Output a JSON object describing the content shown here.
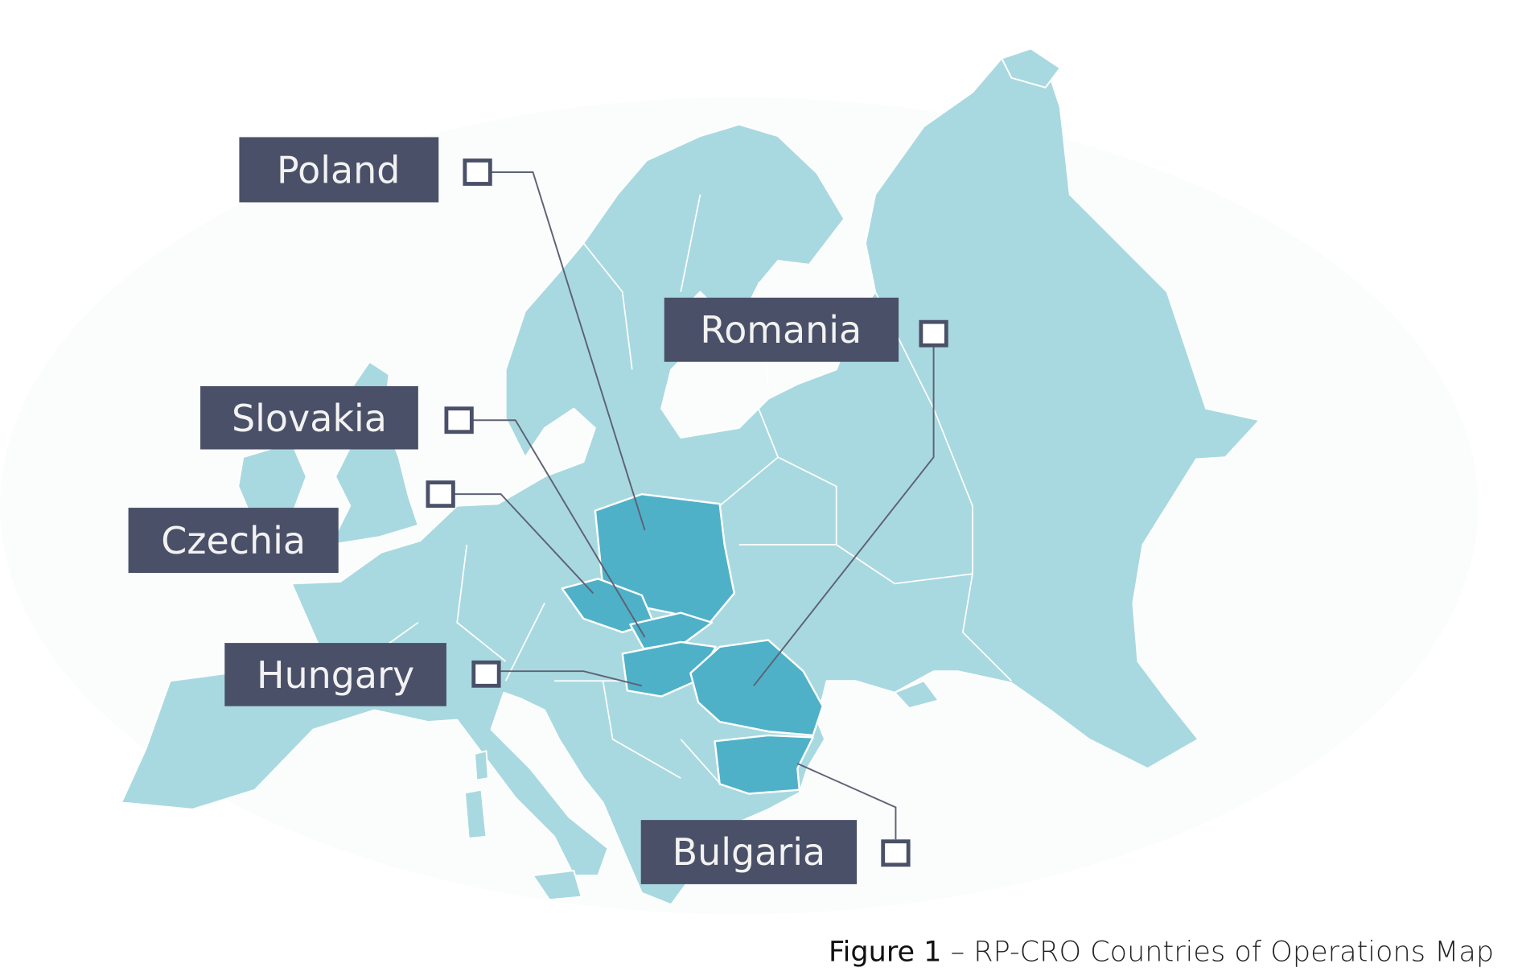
{
  "map": {
    "colors": {
      "land": "#a9d9e0",
      "highlight": "#4fb1c7",
      "label_box": "#4a5068",
      "label_text": "#f2f2f2"
    },
    "labels": [
      {
        "id": "poland",
        "text": "Poland"
      },
      {
        "id": "romania",
        "text": "Romania"
      },
      {
        "id": "slovakia",
        "text": "Slovakia"
      },
      {
        "id": "czechia",
        "text": "Czechia"
      },
      {
        "id": "hungary",
        "text": "Hungary"
      },
      {
        "id": "bulgaria",
        "text": "Bulgaria"
      }
    ],
    "highlighted_countries": [
      "Poland",
      "Czechia",
      "Slovakia",
      "Hungary",
      "Romania",
      "Bulgaria"
    ]
  },
  "caption": {
    "figure": "Figure 1",
    "text": " – RP-CRO Countries of Operations Map"
  }
}
